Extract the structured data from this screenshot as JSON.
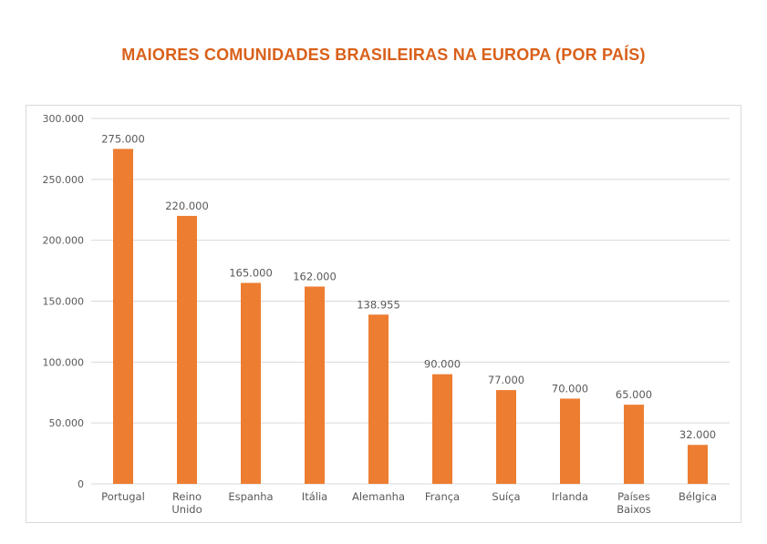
{
  "chart_data": {
    "type": "bar",
    "title": "MAIORES COMUNIDADES BRASILEIRAS NA EUROPA (POR PAÍS)",
    "categories": [
      [
        "Portugal"
      ],
      [
        "Reino",
        "Unido"
      ],
      [
        "Espanha"
      ],
      [
        "Itália"
      ],
      [
        "Alemanha"
      ],
      [
        "França"
      ],
      [
        "Suíça"
      ],
      [
        "Irlanda"
      ],
      [
        "Países",
        "Baixos"
      ],
      [
        "Bélgica"
      ]
    ],
    "values": [
      275000,
      220000,
      165000,
      162000,
      138955,
      90000,
      77000,
      70000,
      65000,
      32000
    ],
    "data_labels": [
      "275.000",
      "220.000",
      "165.000",
      "162.000",
      "138.955",
      "90.000",
      "77.000",
      "70.000",
      "65.000",
      "32.000"
    ],
    "ylim": [
      0,
      300000
    ],
    "yticks": [
      0,
      50000,
      100000,
      150000,
      200000,
      250000,
      300000
    ],
    "ytick_labels": [
      "0",
      "50.000",
      "100.000",
      "150.000",
      "200.000",
      "250.000",
      "300.000"
    ],
    "grid": true,
    "bar_color": "#ed7d31",
    "title_color": "#d9601a"
  }
}
